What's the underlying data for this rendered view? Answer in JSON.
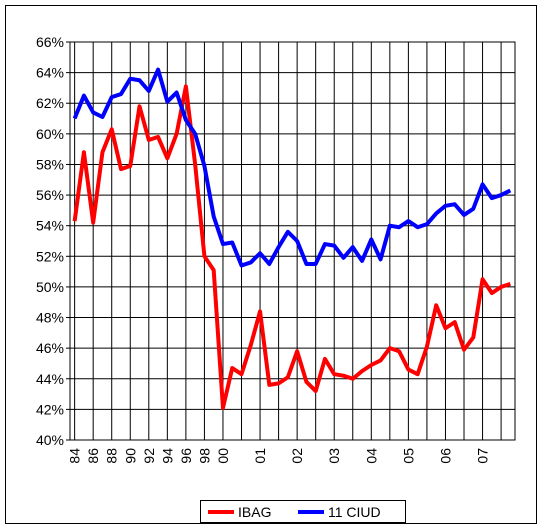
{
  "chart_data": {
    "type": "line",
    "categories": [
      "84",
      null,
      "86",
      null,
      "88",
      null,
      "90",
      null,
      "92",
      null,
      "94",
      null,
      "96",
      null,
      "98",
      null,
      "00",
      null,
      null,
      null,
      "01",
      null,
      null,
      null,
      "02",
      null,
      null,
      null,
      "03",
      null,
      null,
      null,
      "04",
      null,
      null,
      null,
      "05",
      null,
      null,
      null,
      "06",
      null,
      null,
      null,
      "07",
      null,
      null,
      null
    ],
    "series": [
      {
        "name": "IBAG",
        "color": "#ff0000",
        "values": [
          54.3,
          58.8,
          54.2,
          58.8,
          60.3,
          57.7,
          57.9,
          61.8,
          59.6,
          59.8,
          58.4,
          60.0,
          63.1,
          58.0,
          52.0,
          51.1,
          42.1,
          44.7,
          44.3,
          46.2,
          48.4,
          43.6,
          43.7,
          44.1,
          45.8,
          43.8,
          43.2,
          45.3,
          44.3,
          44.2,
          44.0,
          44.5,
          44.9,
          45.2,
          46.0,
          45.8,
          44.6,
          44.3,
          46.1,
          48.8,
          47.3,
          47.7,
          45.9,
          46.7,
          50.5,
          49.6,
          50.0,
          50.2
        ]
      },
      {
        "name": "11 CIUD",
        "color": "#0000ff",
        "values": [
          61.0,
          62.5,
          61.4,
          61.1,
          62.4,
          62.6,
          63.6,
          63.5,
          62.8,
          64.2,
          62.1,
          62.7,
          60.9,
          60.0,
          57.9,
          54.6,
          52.8,
          52.9,
          51.4,
          51.6,
          52.2,
          51.5,
          52.6,
          53.6,
          53.0,
          51.5,
          51.5,
          52.8,
          52.7,
          51.9,
          52.6,
          51.7,
          53.1,
          51.8,
          54.0,
          53.9,
          54.3,
          53.9,
          54.1,
          54.8,
          55.3,
          55.4,
          54.7,
          55.1,
          56.7,
          55.8,
          56.0,
          56.3
        ]
      }
    ],
    "ylim": [
      40,
      66
    ],
    "yticks": [
      {
        "value": 40,
        "label": "40%"
      },
      {
        "value": 42,
        "label": "42%"
      },
      {
        "value": 44,
        "label": "44%"
      },
      {
        "value": 46,
        "label": "46%"
      },
      {
        "value": 48,
        "label": "48%"
      },
      {
        "value": 50,
        "label": "50%"
      },
      {
        "value": 52,
        "label": "52%"
      },
      {
        "value": 54,
        "label": "54%"
      },
      {
        "value": 56,
        "label": "56%"
      },
      {
        "value": 58,
        "label": "58%"
      },
      {
        "value": 60,
        "label": "60%"
      },
      {
        "value": 62,
        "label": "62%"
      },
      {
        "value": 64,
        "label": "64%"
      },
      {
        "value": 66,
        "label": "66%"
      }
    ],
    "grid": true,
    "legend": "bottom"
  }
}
